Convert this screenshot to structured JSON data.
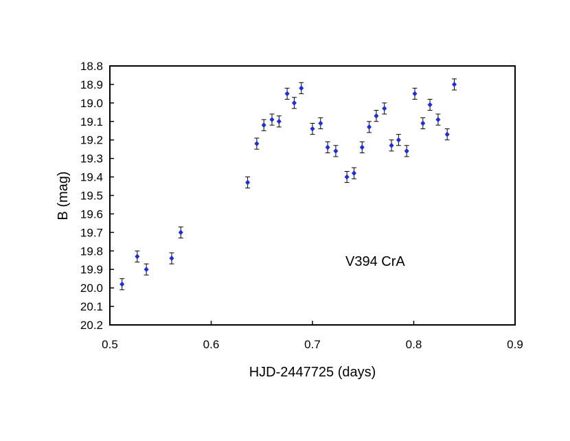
{
  "chart_data": {
    "type": "scatter",
    "xlabel": "HJD-2447725 (days)",
    "ylabel": "B (mag)",
    "xlim": [
      0.5,
      0.9
    ],
    "ylim": [
      18.8,
      20.2
    ],
    "y_inverted": true,
    "grid": false,
    "marker_color": "#1f2fd6",
    "errorbar_color": "#000000",
    "x_ticks": [
      "0.5",
      "0.6",
      "0.7",
      "0.8",
      "0.9"
    ],
    "y_ticks": [
      "18.8",
      "18.9",
      "19.0",
      "19.1",
      "19.2",
      "19.3",
      "19.4",
      "19.5",
      "19.6",
      "19.7",
      "19.8",
      "19.9",
      "20.0",
      "20.1",
      "20.2"
    ],
    "annotation": "V394 CrA",
    "series": [
      {
        "points": [
          {
            "x": 0.512,
            "y": 19.98,
            "err": 0.03
          },
          {
            "x": 0.527,
            "y": 19.83,
            "err": 0.03
          },
          {
            "x": 0.536,
            "y": 19.9,
            "err": 0.03
          },
          {
            "x": 0.561,
            "y": 19.84,
            "err": 0.03
          },
          {
            "x": 0.57,
            "y": 19.7,
            "err": 0.03
          },
          {
            "x": 0.636,
            "y": 19.43,
            "err": 0.03
          },
          {
            "x": 0.645,
            "y": 19.22,
            "err": 0.03
          },
          {
            "x": 0.652,
            "y": 19.12,
            "err": 0.03
          },
          {
            "x": 0.66,
            "y": 19.09,
            "err": 0.03
          },
          {
            "x": 0.667,
            "y": 19.1,
            "err": 0.03
          },
          {
            "x": 0.675,
            "y": 18.95,
            "err": 0.03
          },
          {
            "x": 0.682,
            "y": 19.0,
            "err": 0.03
          },
          {
            "x": 0.689,
            "y": 18.92,
            "err": 0.03
          },
          {
            "x": 0.7,
            "y": 19.14,
            "err": 0.03
          },
          {
            "x": 0.708,
            "y": 19.11,
            "err": 0.03
          },
          {
            "x": 0.715,
            "y": 19.24,
            "err": 0.03
          },
          {
            "x": 0.723,
            "y": 19.26,
            "err": 0.03
          },
          {
            "x": 0.734,
            "y": 19.4,
            "err": 0.03
          },
          {
            "x": 0.741,
            "y": 19.38,
            "err": 0.03
          },
          {
            "x": 0.749,
            "y": 19.24,
            "err": 0.03
          },
          {
            "x": 0.756,
            "y": 19.13,
            "err": 0.03
          },
          {
            "x": 0.763,
            "y": 19.07,
            "err": 0.03
          },
          {
            "x": 0.771,
            "y": 19.03,
            "err": 0.03
          },
          {
            "x": 0.778,
            "y": 19.23,
            "err": 0.03
          },
          {
            "x": 0.785,
            "y": 19.2,
            "err": 0.03
          },
          {
            "x": 0.793,
            "y": 19.26,
            "err": 0.03
          },
          {
            "x": 0.801,
            "y": 18.95,
            "err": 0.03
          },
          {
            "x": 0.809,
            "y": 19.11,
            "err": 0.03
          },
          {
            "x": 0.816,
            "y": 19.01,
            "err": 0.03
          },
          {
            "x": 0.824,
            "y": 19.09,
            "err": 0.03
          },
          {
            "x": 0.833,
            "y": 19.17,
            "err": 0.03
          },
          {
            "x": 0.84,
            "y": 18.9,
            "err": 0.03
          }
        ]
      }
    ]
  }
}
